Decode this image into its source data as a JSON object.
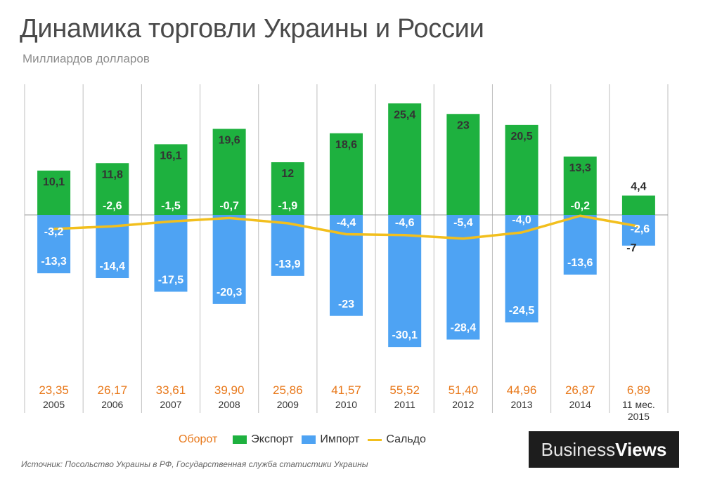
{
  "chart_data": {
    "type": "bar",
    "title": "Динамика торговли Украины и России",
    "subtitle": "Миллиардов долларов",
    "categories": [
      "2005",
      "2006",
      "2007",
      "2008",
      "2009",
      "2010",
      "2011",
      "2012",
      "2013",
      "2014",
      "11 мес.\n2015"
    ],
    "series": [
      {
        "name": "Экспорт",
        "color": "#1eb13f",
        "values": [
          10.1,
          11.8,
          16.1,
          19.6,
          12,
          18.6,
          25.4,
          23,
          20.5,
          13.3,
          4.4
        ],
        "labels": [
          "10,1",
          "11,8",
          "16,1",
          "19,6",
          "12",
          "18,6",
          "25,4",
          "23",
          "20,5",
          "13,3",
          "4,4"
        ]
      },
      {
        "name": "Импорт",
        "color": "#4ea3f3",
        "values": [
          -13.3,
          -14.4,
          -17.5,
          -20.3,
          -13.9,
          -23,
          -30.1,
          -28.4,
          -24.5,
          -13.6,
          -7
        ],
        "labels": [
          "-13,3",
          "-14,4",
          "-17,5",
          "-20,3",
          "-13,9",
          "-23",
          "-30,1",
          "-28,4",
          "-24,5",
          "-13,6",
          "-7"
        ]
      },
      {
        "name": "Сальдо",
        "type": "line",
        "color": "#f2bf1d",
        "values": [
          -3.2,
          -2.6,
          -1.5,
          -0.7,
          -1.9,
          -4.4,
          -4.6,
          -5.4,
          -4.0,
          -0.2,
          -2.6
        ],
        "labels": [
          "-3,2",
          "-2,6",
          "-1,5",
          "-0,7",
          "-1,9",
          "-4,4",
          "-4,6",
          "-5,4",
          "-4,0",
          "-0,2",
          "-2,6"
        ]
      }
    ],
    "turnover": {
      "name": "Оборот",
      "color": "#e8781a",
      "values": [
        23.35,
        26.17,
        33.61,
        39.9,
        25.86,
        41.57,
        55.52,
        51.4,
        44.96,
        26.87,
        6.89
      ],
      "labels": [
        "23,35",
        "26,17",
        "33,61",
        "39,90",
        "25,86",
        "41,57",
        "55,52",
        "51,40",
        "44,96",
        "26,87",
        "6,89"
      ]
    },
    "ylim": [
      -32,
      27
    ],
    "grid": "vertical separators",
    "legend_position": "bottom"
  },
  "legend": {
    "turnover": "Оборот",
    "export": "Экспорт",
    "import": "Импорт",
    "balance": "Сальдо"
  },
  "source": "Источник: Посольство Украины в РФ,  Государственная служба статистики Украины",
  "logo": {
    "part1": "Business",
    "part2": "Views"
  }
}
